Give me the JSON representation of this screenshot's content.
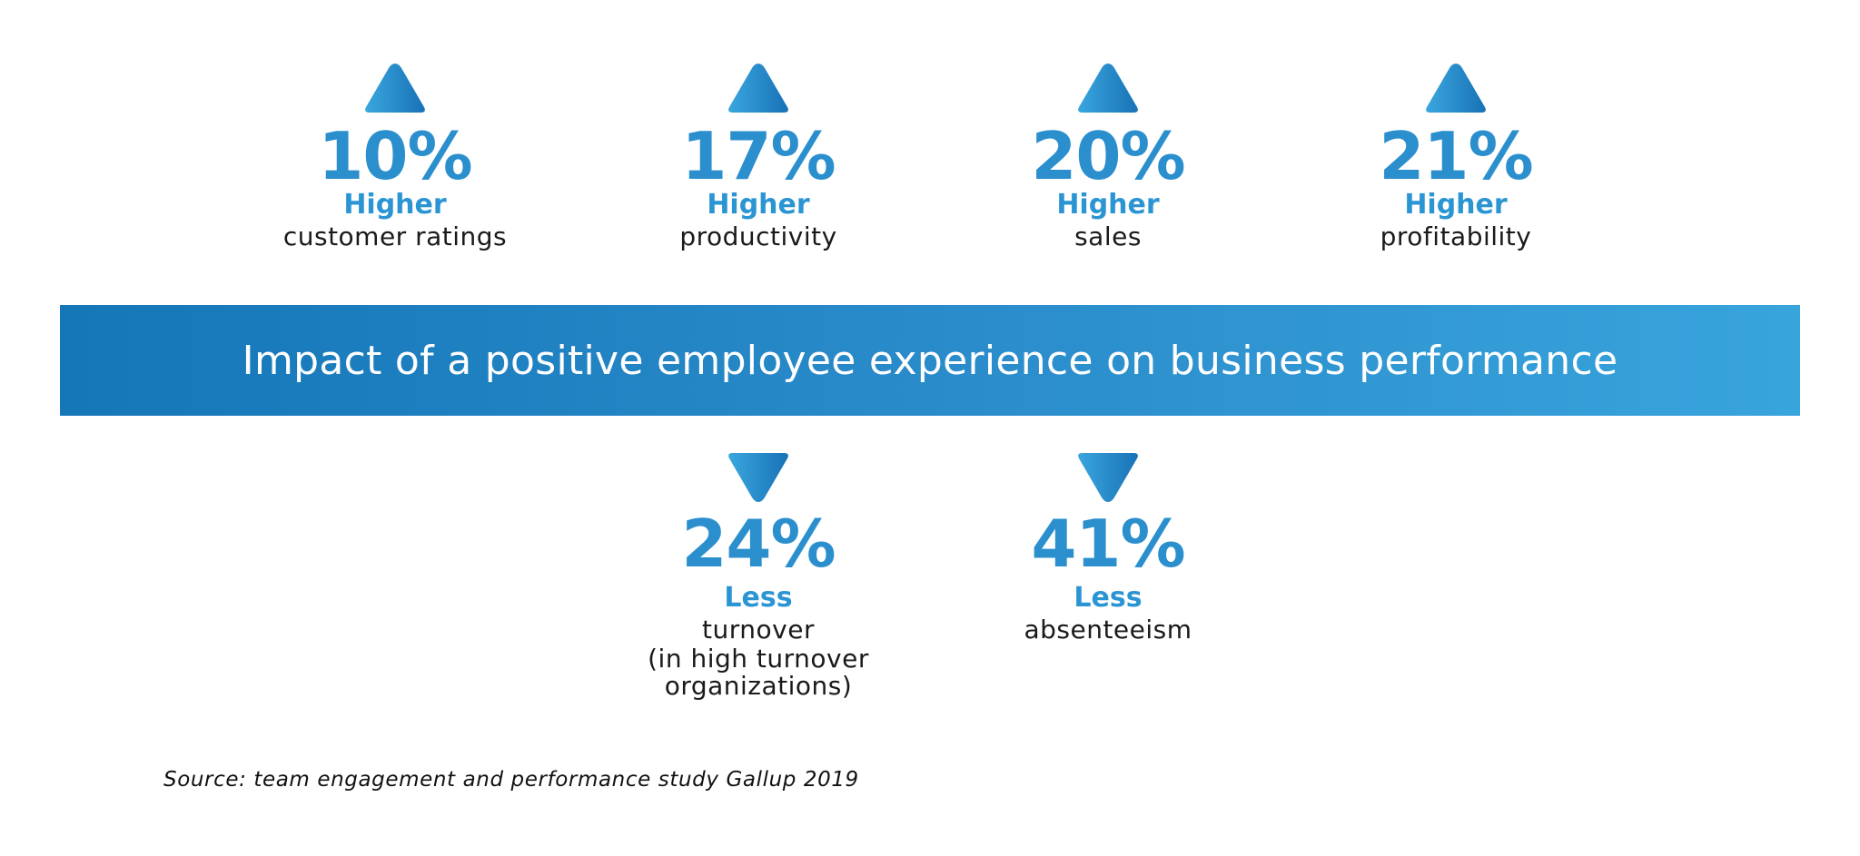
{
  "colors": {
    "accent": "#2b8fce",
    "banner_start": "#1576b8",
    "banner_end": "#38a4dc",
    "arrow_light": "#3aa6de",
    "arrow_dark": "#1872b6"
  },
  "higher_stats": [
    {
      "value": "10%",
      "qualifier": "Higher",
      "description": "customer ratings",
      "icon": "triangle-up-icon"
    },
    {
      "value": "17%",
      "qualifier": "Higher",
      "description": "productivity",
      "icon": "triangle-up-icon"
    },
    {
      "value": "20%",
      "qualifier": "Higher",
      "description": "sales",
      "icon": "triangle-up-icon"
    },
    {
      "value": "21%",
      "qualifier": "Higher",
      "description": "profitability",
      "icon": "triangle-up-icon"
    }
  ],
  "banner": {
    "title": "Impact of a positive employee experience on business performance"
  },
  "less_stats": [
    {
      "value": "24%",
      "qualifier": "Less",
      "description": "turnover",
      "note": "(in high turnover organizations)",
      "icon": "triangle-down-icon"
    },
    {
      "value": "41%",
      "qualifier": "Less",
      "description": "absenteeism",
      "icon": "triangle-down-icon"
    }
  ],
  "source": "Source: team engagement and performance study Gallup 2019"
}
